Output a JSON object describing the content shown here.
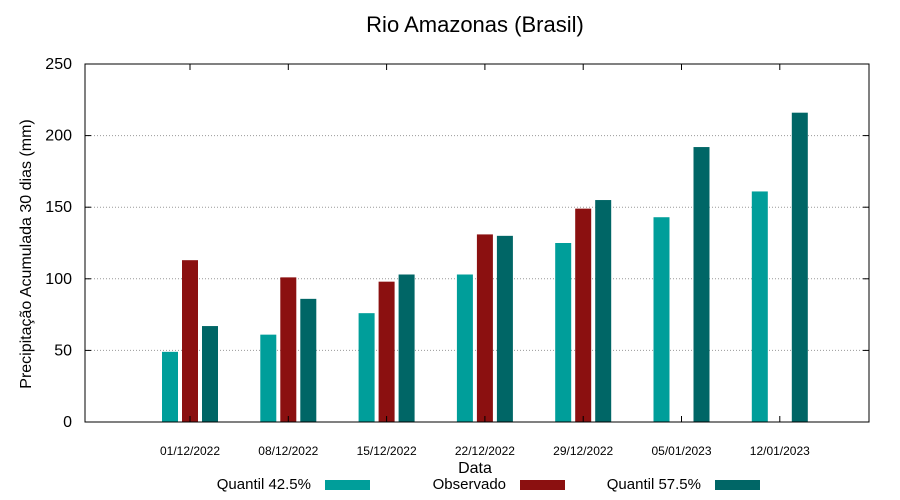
{
  "chart_data": {
    "type": "bar",
    "title": "Rio Amazonas (Brasil)",
    "xlabel": "Data",
    "ylabel": "Precipitação Acumulada 30 dias (mm)",
    "ylim": [
      0,
      250
    ],
    "yticks": [
      0,
      50,
      100,
      150,
      200,
      250
    ],
    "grid": true,
    "categories": [
      "01/12/2022",
      "08/12/2022",
      "15/12/2022",
      "22/12/2022",
      "29/12/2022",
      "05/01/2023",
      "12/01/2023"
    ],
    "series": [
      {
        "name": "Quantil 42.5%",
        "color": "#009e9a",
        "values": [
          49,
          61,
          76,
          103,
          125,
          143,
          161
        ]
      },
      {
        "name": "Observado",
        "color": "#8b1010",
        "values": [
          113,
          101,
          98,
          131,
          149,
          null,
          null
        ]
      },
      {
        "name": "Quantil 57.5%",
        "color": "#006666",
        "values": [
          67,
          86,
          103,
          130,
          155,
          192,
          216
        ]
      }
    ],
    "legend_position": "bottom"
  }
}
